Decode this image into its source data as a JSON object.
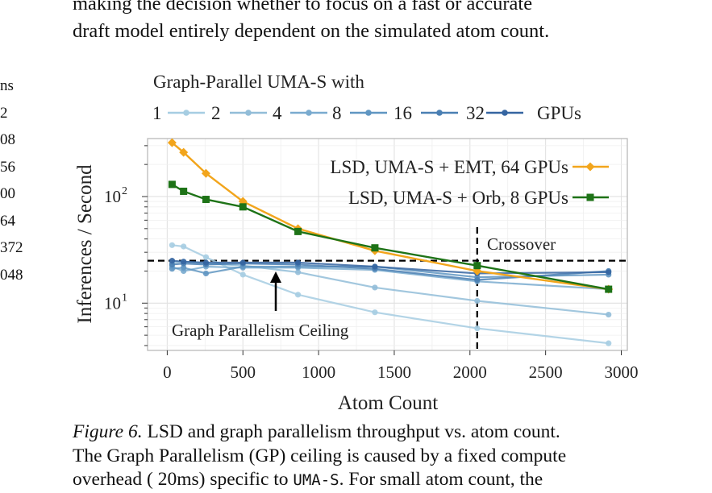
{
  "body_text": {
    "line1": "making the decision whether to focus on a fast or accurate",
    "line2": "draft model entirely dependent on the simulated atom count."
  },
  "left_column_fragments": [
    "ns",
    "2",
    "08",
    "56",
    "00",
    "64",
    "372",
    "048"
  ],
  "caption": {
    "label": "Figure 6.",
    "line1_rest": " LSD and graph parallelism throughput vs. atom count.",
    "line2": "The Graph Parallelism (GP) ceiling is caused by a fixed compute",
    "line3_before": "overhead ( 20ms) specific to ",
    "line3_code": "UMA-S",
    "line3_after": ". For small atom count, the"
  },
  "colors": {
    "gp_1": "#a6cde2",
    "gp_2": "#92bdd8",
    "gp_4": "#7aabcf",
    "gp_8": "#6096c2",
    "gp_16": "#4a7fb3",
    "gp_32": "#3565a1",
    "lsd_emt": "#f2a51c",
    "lsd_orb": "#1e7317"
  },
  "chart_data": {
    "type": "line",
    "legend_title": "Graph-Parallel UMA-S with",
    "legend_gpu_labels": [
      "1",
      "2",
      "4",
      "8",
      "16",
      "32"
    ],
    "legend_suffix": "GPUs",
    "xlabel": "Atom Count",
    "ylabel": "Inferences / Second",
    "x_ticks": [
      "0",
      "500",
      "1000",
      "1500",
      "2000",
      "2500",
      "3000"
    ],
    "y_tick_labels": [
      {
        "base": "10",
        "exp": "2",
        "value": 100
      },
      {
        "base": "10",
        "exp": "1",
        "value": 10
      }
    ],
    "xlim": [
      -130,
      3040
    ],
    "ylim": [
      3.6,
      350
    ],
    "y_scale": "log",
    "grid": true,
    "annotations": {
      "crossover": "Crossover",
      "ceiling": "Graph Parallelism Ceiling"
    },
    "crossover_x": 2048,
    "ceiling_y": 25,
    "gp_series": [
      {
        "color_key": "gp_1",
        "x": [
          32,
          108,
          256,
          500,
          864,
          1372,
          2048,
          2916
        ],
        "y": [
          35,
          34,
          27,
          18.5,
          12,
          8.2,
          5.8,
          4.2
        ]
      },
      {
        "color_key": "gp_2",
        "x": [
          32,
          108,
          256,
          500,
          864,
          1372,
          2048,
          2916
        ],
        "y": [
          24,
          24.5,
          23.5,
          22.5,
          19.5,
          14,
          10.5,
          7.8
        ]
      },
      {
        "color_key": "gp_4",
        "x": [
          32,
          108,
          256,
          500,
          864,
          1372,
          2048,
          2916
        ],
        "y": [
          22,
          20,
          22,
          21.5,
          21.5,
          20.5,
          16,
          13.5
        ]
      },
      {
        "color_key": "gp_8",
        "x": [
          32,
          108,
          256,
          500,
          864,
          1372,
          2048,
          2916
        ],
        "y": [
          21,
          21.5,
          19,
          22,
          22,
          22,
          17.5,
          18.5
        ]
      },
      {
        "color_key": "gp_16",
        "x": [
          32,
          108,
          256,
          500,
          864,
          1372,
          2048,
          2916
        ],
        "y": [
          23,
          23.5,
          23,
          23.5,
          23,
          21,
          16.5,
          20
        ]
      },
      {
        "color_key": "gp_32",
        "x": [
          32,
          108,
          256,
          500,
          864,
          1372,
          2048,
          2916
        ],
        "y": [
          25,
          24.5,
          24,
          24,
          24,
          22,
          19,
          19.5
        ]
      }
    ],
    "lsd_series": [
      {
        "name": "LSD, UMA-S + EMT, 64 GPUs",
        "color_key": "lsd_emt",
        "marker": "diamond",
        "x": [
          32,
          108,
          256,
          500,
          864,
          1372,
          2048,
          2916
        ],
        "y": [
          320,
          260,
          165,
          90,
          50,
          31,
          20,
          13.5
        ]
      },
      {
        "name": "LSD, UMA-S + Orb, 8 GPUs",
        "color_key": "lsd_orb",
        "marker": "square",
        "x": [
          32,
          108,
          256,
          500,
          864,
          1372,
          2048,
          2916
        ],
        "y": [
          130,
          112,
          94,
          80,
          47,
          33,
          22.5,
          13.5
        ]
      }
    ]
  }
}
